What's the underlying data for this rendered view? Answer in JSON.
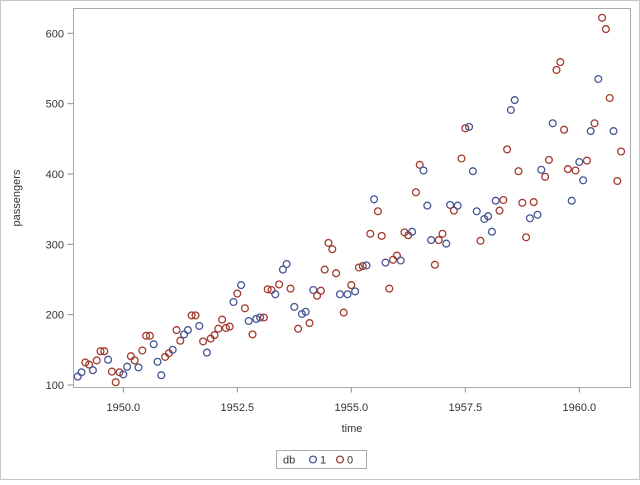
{
  "figure": {
    "background": "#ffffff",
    "outer_border_color": "#c6c6c6",
    "frame_color": "#ababab",
    "tick_color": "#8f8f8f",
    "text_color": "#333333"
  },
  "chart_data": {
    "type": "scatter",
    "title": "",
    "xlabel": "time",
    "ylabel": "passengers",
    "xlim": [
      1948.9,
      1961.1
    ],
    "ylim": [
      90,
      640
    ],
    "grid": false,
    "x_ticks": [
      1950.0,
      1952.5,
      1955.0,
      1957.5,
      1960.0
    ],
    "x_tick_labels": [
      "1950.0",
      "1952.5",
      "1955.0",
      "1957.5",
      "1960.0"
    ],
    "y_ticks": [
      100,
      200,
      300,
      400,
      500,
      600
    ],
    "y_tick_labels": [
      "100",
      "200",
      "300",
      "400",
      "500",
      "600"
    ],
    "legend": {
      "position": "bottom-center",
      "title": "db",
      "entries": [
        {
          "label": "1",
          "color": "#445694"
        },
        {
          "label": "0",
          "color": "#A23A2E"
        }
      ]
    },
    "marker": {
      "shape": "circle",
      "radius": 3.4,
      "stroke_width": 1.3,
      "fill": "none"
    },
    "series": [
      {
        "name": "1",
        "db": 1,
        "color": "#445694"
      },
      {
        "name": "0",
        "db": 0,
        "color": "#A23A2E"
      }
    ],
    "years": [
      {
        "year": 1949,
        "values": [
          112,
          118,
          132,
          129,
          121,
          135,
          148,
          148,
          136,
          119,
          104,
          118
        ],
        "db": [
          1,
          1,
          0,
          0,
          1,
          0,
          0,
          0,
          1,
          0,
          0,
          0
        ]
      },
      {
        "year": 1950,
        "values": [
          115,
          126,
          141,
          135,
          125,
          149,
          170,
          170,
          158,
          133,
          114,
          140
        ],
        "db": [
          1,
          1,
          0,
          0,
          1,
          0,
          0,
          0,
          1,
          1,
          1,
          0
        ]
      },
      {
        "year": 1951,
        "values": [
          145,
          150,
          178,
          163,
          172,
          178,
          199,
          199,
          184,
          162,
          146,
          166
        ],
        "db": [
          0,
          1,
          0,
          0,
          1,
          1,
          0,
          0,
          1,
          0,
          1,
          0
        ]
      },
      {
        "year": 1952,
        "values": [
          171,
          180,
          193,
          181,
          183,
          218,
          230,
          242,
          209,
          191,
          172,
          194
        ],
        "db": [
          0,
          0,
          0,
          0,
          0,
          1,
          0,
          1,
          0,
          1,
          0,
          1
        ]
      },
      {
        "year": 1953,
        "values": [
          196,
          196,
          236,
          235,
          229,
          243,
          264,
          272,
          237,
          211,
          180,
          201
        ],
        "db": [
          1,
          0,
          0,
          0,
          1,
          0,
          1,
          1,
          0,
          1,
          0,
          1
        ]
      },
      {
        "year": 1954,
        "values": [
          204,
          188,
          235,
          227,
          234,
          264,
          302,
          293,
          259,
          229,
          203,
          229
        ],
        "db": [
          1,
          0,
          1,
          0,
          0,
          0,
          0,
          0,
          0,
          1,
          0,
          1
        ]
      },
      {
        "year": 1955,
        "values": [
          242,
          233,
          267,
          269,
          270,
          315,
          364,
          347,
          312,
          274,
          237,
          278
        ],
        "db": [
          0,
          1,
          0,
          0,
          1,
          0,
          1,
          0,
          0,
          1,
          0,
          0
        ]
      },
      {
        "year": 1956,
        "values": [
          284,
          277,
          317,
          313,
          318,
          374,
          413,
          405,
          355,
          306,
          271,
          306
        ],
        "db": [
          0,
          1,
          0,
          0,
          1,
          0,
          0,
          1,
          1,
          1,
          0,
          0
        ]
      },
      {
        "year": 1957,
        "values": [
          315,
          301,
          356,
          348,
          355,
          422,
          465,
          467,
          404,
          347,
          305,
          336
        ],
        "db": [
          0,
          1,
          1,
          0,
          1,
          0,
          0,
          1,
          1,
          1,
          0,
          1
        ]
      },
      {
        "year": 1958,
        "values": [
          340,
          318,
          362,
          348,
          363,
          435,
          491,
          505,
          404,
          359,
          310,
          337
        ],
        "db": [
          1,
          1,
          1,
          0,
          0,
          0,
          1,
          1,
          0,
          0,
          0,
          1
        ]
      },
      {
        "year": 1959,
        "values": [
          360,
          342,
          406,
          396,
          420,
          472,
          548,
          559,
          463,
          407,
          362,
          405
        ],
        "db": [
          0,
          1,
          1,
          0,
          0,
          1,
          0,
          0,
          0,
          0,
          1,
          0
        ]
      },
      {
        "year": 1960,
        "values": [
          417,
          391,
          419,
          461,
          472,
          535,
          622,
          606,
          508,
          461,
          390,
          432
        ],
        "db": [
          1,
          1,
          0,
          1,
          0,
          1,
          0,
          0,
          0,
          1,
          0,
          0
        ]
      }
    ]
  }
}
